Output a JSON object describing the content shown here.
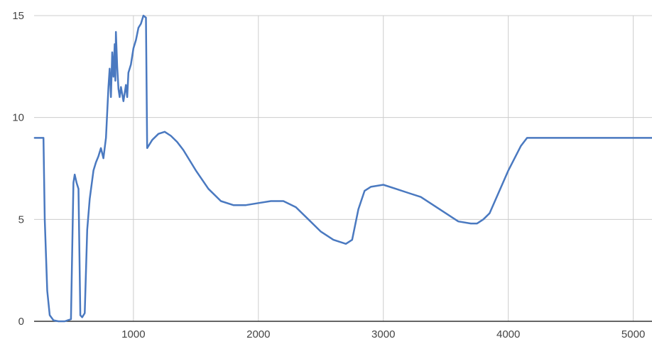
{
  "chart_data": {
    "type": "line",
    "title": "",
    "xlabel": "",
    "ylabel": "",
    "xlim": [
      205,
      5150
    ],
    "ylim": [
      0,
      15
    ],
    "x_ticks": [
      1000,
      2000,
      3000,
      4000,
      5000
    ],
    "y_ticks": [
      0,
      5,
      10,
      15
    ],
    "x_tick_labels": [
      "1000",
      "2000",
      "3000",
      "4000",
      "5000"
    ],
    "y_tick_labels": [
      "0",
      "5",
      "10",
      "15"
    ],
    "grid": true,
    "legend": "none",
    "line_color": "#4a79c0",
    "series": [
      {
        "x": [
          210,
          280,
          290,
          310,
          330,
          360,
          400,
          450,
          500,
          520,
          530,
          545,
          560,
          575,
          590,
          610,
          630,
          650,
          680,
          700,
          720,
          740,
          760,
          780,
          800,
          810,
          820,
          830,
          840,
          850,
          855,
          860,
          870,
          880,
          890,
          900,
          920,
          940,
          950,
          960,
          980,
          1000,
          1020,
          1040,
          1060,
          1080,
          1100,
          1110,
          1150,
          1200,
          1250,
          1300,
          1350,
          1400,
          1500,
          1600,
          1700,
          1800,
          1900,
          2000,
          2100,
          2200,
          2300,
          2400,
          2500,
          2600,
          2700,
          2750,
          2800,
          2850,
          2900,
          3000,
          3100,
          3200,
          3300,
          3400,
          3500,
          3600,
          3700,
          3750,
          3800,
          3850,
          3900,
          4000,
          4100,
          4150,
          4200,
          4300,
          4500,
          4800,
          5150
        ],
        "y": [
          9,
          9,
          5,
          1.5,
          0.3,
          0.05,
          0,
          0,
          0.1,
          6.8,
          7.2,
          6.8,
          6.5,
          0.3,
          0.2,
          0.4,
          4.5,
          6.0,
          7.4,
          7.8,
          8.1,
          8.5,
          8.0,
          9.0,
          11.5,
          12.4,
          11.0,
          13.2,
          12.0,
          13.6,
          11.8,
          14.2,
          12.5,
          11.4,
          11.0,
          11.5,
          10.8,
          11.6,
          11.0,
          12.2,
          12.6,
          13.4,
          13.8,
          14.4,
          14.6,
          15,
          14.9,
          8.5,
          8.9,
          9.2,
          9.3,
          9.1,
          8.8,
          8.4,
          7.4,
          6.5,
          5.9,
          5.7,
          5.7,
          5.8,
          5.9,
          5.9,
          5.6,
          5.0,
          4.4,
          4.0,
          3.8,
          4.0,
          5.5,
          6.4,
          6.6,
          6.7,
          6.5,
          6.3,
          6.1,
          5.7,
          5.3,
          4.9,
          4.8,
          4.8,
          5.0,
          5.3,
          6.0,
          7.4,
          8.6,
          9.0,
          9.0,
          9.0,
          9.0,
          9.0,
          9.0
        ]
      }
    ]
  }
}
